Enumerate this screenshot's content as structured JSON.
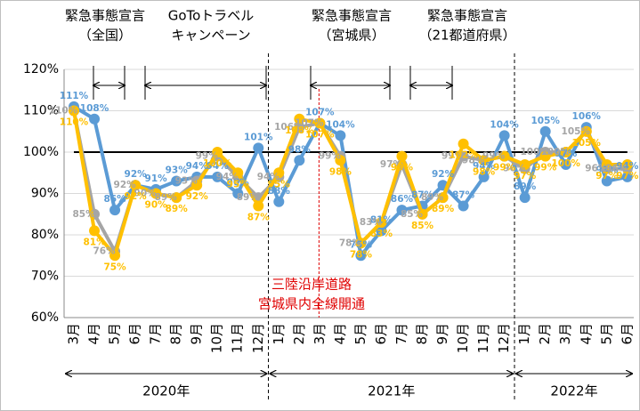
{
  "chart_data": {
    "type": "line",
    "categories": [
      "3月",
      "4月",
      "5月",
      "6月",
      "7月",
      "8月",
      "9月",
      "10月",
      "11月",
      "12月",
      "1月",
      "2月",
      "3月",
      "4月",
      "5月",
      "6月",
      "7月",
      "8月",
      "9月",
      "10月",
      "11月",
      "12月",
      "1月",
      "2月",
      "3月",
      "4月",
      "5月",
      "6月"
    ],
    "years": [
      "2020年",
      "2021年",
      "2022年"
    ],
    "series": [
      {
        "color": "#5b9bd5",
        "values": [
          111,
          108,
          86,
          92,
          91,
          93,
          94,
          94,
          90,
          101,
          88,
          98,
          107,
          104,
          75,
          81,
          86,
          87,
          92,
          87,
          94,
          104,
          89,
          105,
          97,
          106,
          93,
          94
        ],
        "value_labels": [
          "111%",
          "108%",
          "86%",
          "92%",
          "91%",
          "93%",
          "94%",
          "94%",
          "90%",
          "101%",
          "88%",
          "98%",
          "107%",
          "104%",
          "75%",
          "81%",
          "86%",
          "87%",
          "92%",
          "87%",
          "94%",
          "104%",
          "89%",
          "105%",
          "97%",
          "106%",
          "93%",
          "94%"
        ]
      },
      {
        "color": "#a5a5a5",
        "values": [
          110,
          85,
          76,
          92,
          90,
          89,
          93,
          99,
          94,
          89,
          94,
          106,
          107,
          99,
          78,
          83,
          97,
          85,
          89,
          99,
          98,
          99,
          96,
          100,
          100,
          105,
          96,
          96
        ],
        "value_labels": [
          "110%",
          "85%",
          "76%",
          "92%",
          "90%",
          "89%",
          "93%",
          "99%",
          "94%",
          "89%",
          "94%",
          "106%",
          "107%",
          "99%",
          "78%",
          "83%",
          "97%",
          "85%",
          "89%",
          "99%",
          "98%",
          "99%",
          "96%",
          "100%",
          "100%",
          "105%",
          "96%",
          "96%"
        ]
      },
      {
        "color": "#ffc000",
        "values": [
          110,
          81,
          75,
          92,
          90,
          89,
          92,
          100,
          95,
          87,
          95,
          108,
          107,
          98,
          78,
          83,
          99,
          85,
          89,
          102,
          98,
          99,
          97,
          99,
          100,
          105,
          97,
          97
        ],
        "value_labels": [
          "110%",
          "81%",
          "75%",
          "92%",
          "90%",
          "89%",
          "92%",
          "100%",
          "95%",
          "87%",
          "95%",
          "108%",
          "107%",
          "98%",
          "78%",
          "83%",
          "99%",
          "85%",
          "89%",
          "102%",
          "98%",
          "99%",
          "97%",
          "99%",
          "100%",
          "105%",
          "97%",
          "97%"
        ]
      }
    ],
    "ylim": [
      60,
      120
    ],
    "yticks": [
      {
        "value": 60,
        "label": "60%"
      },
      {
        "value": 70,
        "label": "70%"
      },
      {
        "value": 80,
        "label": "80%"
      },
      {
        "value": 90,
        "label": "90%"
      },
      {
        "value": 100,
        "label": "100%"
      },
      {
        "value": 110,
        "label": "110%"
      },
      {
        "value": 120,
        "label": "120%"
      }
    ],
    "grid": true,
    "reference_line": 100,
    "annotations": [
      {
        "lines": [
          "緊急事態宣言",
          "（全国）"
        ]
      },
      {
        "lines": [
          "GoToトラベル",
          "キャンペーン"
        ]
      },
      {
        "lines": [
          "緊急事態宣言",
          "（宮城県）"
        ]
      },
      {
        "lines": [
          "緊急事態宣言",
          "（21都道府県）"
        ]
      },
      {
        "lines": [
          "三陸沿岸道路",
          "宮城県内全線開通"
        ],
        "color": "#e00000"
      }
    ]
  }
}
